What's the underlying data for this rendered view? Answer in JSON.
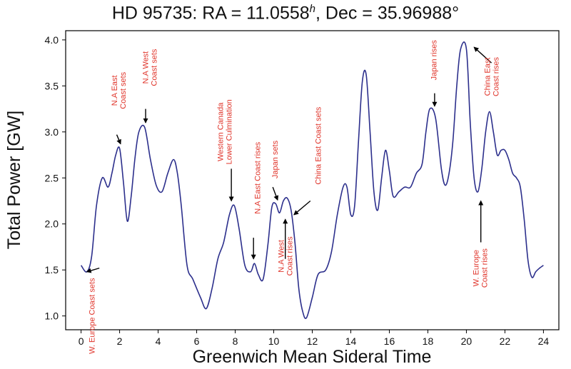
{
  "chart_data": {
    "type": "line",
    "title_main": "HD 95735: RA = 11.0558",
    "title_sup": "h",
    "title_rest": ", Dec = 35.96988°",
    "xlabel": "Greenwich Mean Sideral Time",
    "ylabel": "Total Power [GW]",
    "xlim": [
      -0.8,
      24.8
    ],
    "ylim": [
      0.85,
      4.1
    ],
    "xticks": [
      0,
      2,
      4,
      6,
      8,
      10,
      12,
      14,
      16,
      18,
      20,
      22,
      24
    ],
    "yticks": [
      "1.0",
      "1.5",
      "2.0",
      "2.5",
      "3.0",
      "3.5",
      "4.0"
    ],
    "grid": false,
    "line_color": "#2c2f8c",
    "annotation_color": "#e0352b",
    "series": [
      {
        "x": [
          0,
          0.3,
          0.55,
          0.8,
          1.1,
          1.4,
          1.6,
          1.8,
          2.0,
          2.2,
          2.4,
          2.6,
          2.8,
          3.0,
          3.3,
          3.6,
          3.9,
          4.2,
          4.5,
          4.8,
          5.0,
          5.2,
          5.5,
          5.8,
          6.2,
          6.5,
          6.8,
          7.1,
          7.4,
          7.7,
          7.95,
          8.2,
          8.5,
          8.8,
          9.0,
          9.2,
          9.45,
          9.7,
          9.9,
          10.1,
          10.3,
          10.5,
          10.7,
          10.9,
          11.1,
          11.3,
          11.5,
          11.7,
          12.0,
          12.3,
          12.7,
          13.0,
          13.3,
          13.6,
          13.8,
          14.0,
          14.2,
          14.4,
          14.6,
          14.8,
          15.0,
          15.2,
          15.4,
          15.6,
          15.8,
          16.0,
          16.2,
          16.5,
          16.8,
          17.1,
          17.4,
          17.7,
          17.9,
          18.1,
          18.4,
          18.7,
          18.9,
          19.1,
          19.3,
          19.5,
          19.7,
          20.0,
          20.2,
          20.4,
          20.6,
          20.8,
          21.0,
          21.2,
          21.4,
          21.6,
          21.8,
          22.0,
          22.2,
          22.4,
          22.6,
          22.8,
          23.0,
          23.2,
          23.4,
          23.6,
          23.8,
          24.0
        ],
        "y": [
          1.55,
          1.48,
          1.65,
          2.2,
          2.5,
          2.4,
          2.55,
          2.75,
          2.82,
          2.45,
          2.03,
          2.3,
          2.72,
          3.0,
          3.05,
          2.7,
          2.42,
          2.35,
          2.55,
          2.7,
          2.55,
          2.2,
          1.55,
          1.4,
          1.2,
          1.08,
          1.3,
          1.62,
          1.8,
          2.1,
          2.2,
          1.95,
          1.55,
          1.48,
          1.57,
          1.45,
          1.4,
          1.78,
          2.18,
          2.22,
          2.12,
          2.25,
          2.28,
          2.15,
          1.8,
          1.3,
          1.05,
          0.98,
          1.2,
          1.45,
          1.5,
          1.7,
          2.1,
          2.4,
          2.4,
          2.1,
          2.2,
          2.9,
          3.55,
          3.62,
          3.0,
          2.35,
          2.15,
          2.5,
          2.8,
          2.58,
          2.3,
          2.35,
          2.4,
          2.4,
          2.55,
          2.65,
          3.0,
          3.25,
          3.15,
          2.6,
          2.42,
          2.55,
          2.9,
          3.5,
          3.9,
          3.9,
          3.1,
          2.5,
          2.35,
          2.6,
          3.0,
          3.22,
          3.0,
          2.75,
          2.8,
          2.8,
          2.7,
          2.55,
          2.5,
          2.4,
          2.05,
          1.6,
          1.42,
          1.48,
          1.52,
          1.55
        ]
      }
    ],
    "annotations": [
      {
        "text": [
          "W. Europe Coast sets"
        ],
        "tx": 0.55,
        "ty": 1.0,
        "ax1": 0.95,
        "ay1": 1.52,
        "ax2": 0.3,
        "ay2": 1.48
      },
      {
        "text": [
          "N.A East",
          "Coast sets"
        ],
        "tx": 1.95,
        "ty": 3.45,
        "ax1": 1.85,
        "ay1": 2.97,
        "ax2": 2.05,
        "ay2": 2.87
      },
      {
        "text": [
          "N.A West",
          "Coast sets"
        ],
        "tx": 3.55,
        "ty": 3.7,
        "ax1": 3.35,
        "ay1": 3.25,
        "ax2": 3.35,
        "ay2": 3.1
      },
      {
        "text": [
          "Western Canada",
          "Lower Culmination"
        ],
        "tx": 7.45,
        "ty": 3.0,
        "ax1": 7.8,
        "ay1": 2.6,
        "ax2": 7.8,
        "ay2": 2.25
      },
      {
        "text": [
          "N.A East Coast rises"
        ],
        "tx": 9.15,
        "ty": 2.5,
        "ax1": 8.95,
        "ay1": 1.85,
        "ax2": 8.95,
        "ay2": 1.62
      },
      {
        "text": [
          "Japan sets"
        ],
        "tx": 10.05,
        "ty": 2.7,
        "ax1": 9.95,
        "ay1": 2.4,
        "ax2": 10.2,
        "ay2": 2.26
      },
      {
        "text": [
          "N.A West",
          "Coast rises"
        ],
        "tx": 10.6,
        "ty": 1.65,
        "ax1": 10.6,
        "ay1": 1.62,
        "ax2": 10.6,
        "ay2": 2.05
      },
      {
        "text": [
          "China East Coast sets"
        ],
        "tx": 12.3,
        "ty": 2.85,
        "ax1": 11.9,
        "ay1": 2.25,
        "ax2": 11.05,
        "ay2": 2.1
      },
      {
        "text": [
          "Japan rises"
        ],
        "tx": 18.3,
        "ty": 3.78,
        "ax1": 18.35,
        "ay1": 3.42,
        "ax2": 18.35,
        "ay2": 3.28
      },
      {
        "text": [
          "China East",
          "Coast rises"
        ],
        "tx": 21.3,
        "ty": 3.6,
        "ax1": 21.3,
        "ay1": 3.75,
        "ax2": 20.4,
        "ay2": 3.92
      },
      {
        "text": [
          "W. Europe",
          "Coast rises"
        ],
        "tx": 20.7,
        "ty": 1.52,
        "ax1": 20.75,
        "ay1": 1.8,
        "ax2": 20.75,
        "ay2": 2.25
      }
    ]
  }
}
